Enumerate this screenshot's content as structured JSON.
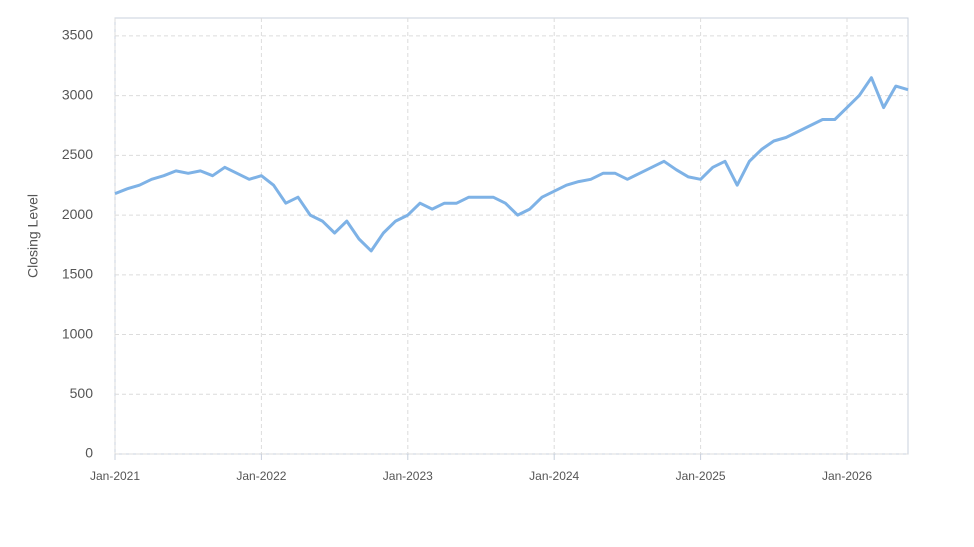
{
  "chart_data": {
    "type": "line",
    "y_label": "Closing Level",
    "x": [
      "2021-01",
      "2021-02",
      "2021-03",
      "2021-04",
      "2021-05",
      "2021-06",
      "2021-07",
      "2021-08",
      "2021-09",
      "2021-10",
      "2021-11",
      "2021-12",
      "2022-01",
      "2022-02",
      "2022-03",
      "2022-04",
      "2022-05",
      "2022-06",
      "2022-07",
      "2022-08",
      "2022-09",
      "2022-10",
      "2022-11",
      "2022-12",
      "2023-01",
      "2023-02",
      "2023-03",
      "2023-04",
      "2023-05",
      "2023-06",
      "2023-07",
      "2023-08",
      "2023-09",
      "2023-10",
      "2023-11",
      "2023-12",
      "2024-01",
      "2024-02",
      "2024-03",
      "2024-04",
      "2024-05",
      "2024-06",
      "2024-07",
      "2024-08",
      "2024-09",
      "2024-10",
      "2024-11",
      "2024-12",
      "2025-01",
      "2025-02",
      "2025-03",
      "2025-04",
      "2025-05",
      "2025-06",
      "2025-07",
      "2025-08",
      "2025-09",
      "2025-10",
      "2025-11",
      "2025-12",
      "2026-01",
      "2026-02",
      "2026-03",
      "2026-04",
      "2026-05",
      "2026-06"
    ],
    "series": [
      {
        "name": "Closing Level",
        "color": "#7eb2e6",
        "values": [
          2180,
          2220,
          2250,
          2300,
          2330,
          2370,
          2350,
          2370,
          2330,
          2400,
          2350,
          2300,
          2330,
          2250,
          2100,
          2150,
          2000,
          1950,
          1850,
          1950,
          1800,
          1700,
          1850,
          1950,
          2000,
          2100,
          2050,
          2100,
          2100,
          2150,
          2150,
          2150,
          2100,
          2000,
          2050,
          2150,
          2200,
          2250,
          2280,
          2300,
          2350,
          2350,
          2300,
          2350,
          2400,
          2450,
          2380,
          2320,
          2300,
          2400,
          2450,
          2250,
          2450,
          2550,
          2620,
          2650,
          2700,
          2750,
          2800,
          2800,
          2900,
          3000,
          3150,
          2900,
          3080,
          3050
        ]
      }
    ],
    "xlim": [
      "2021-01",
      "2026-06"
    ],
    "xticks": [
      {
        "value": "2021-01",
        "label": "Jan-2021"
      },
      {
        "value": "2022-01",
        "label": "Jan-2022"
      },
      {
        "value": "2023-01",
        "label": "Jan-2023"
      },
      {
        "value": "2024-01",
        "label": "Jan-2024"
      },
      {
        "value": "2025-01",
        "label": "Jan-2025"
      },
      {
        "value": "2026-01",
        "label": "Jan-2026"
      }
    ],
    "ylim": [
      0,
      3650
    ],
    "yticks": [
      0,
      500,
      1000,
      1500,
      2000,
      2500,
      3000,
      3500
    ],
    "grid": true
  }
}
